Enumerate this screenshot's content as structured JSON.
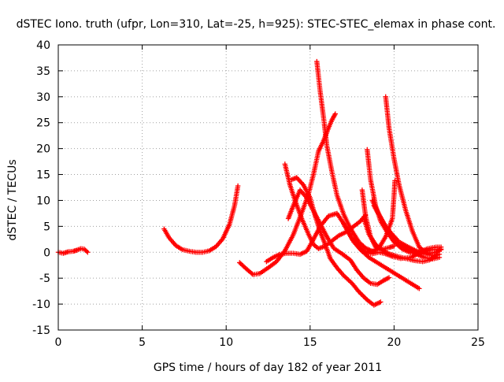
{
  "chart_data": {
    "type": "scatter",
    "title": "dSTEC Iono. truth (ufpr, Lon=310, Lat=-25, h=925): STEC-STEC_elemax in phase cont.",
    "xlabel": "GPS time / hours of day 182 of year 2011",
    "ylabel": "dSTEC  / TECUs",
    "xlim": [
      0,
      25
    ],
    "ylim": [
      -15,
      40
    ],
    "xticks": [
      0,
      5,
      10,
      15,
      20,
      25
    ],
    "yticks": [
      -15,
      -10,
      -5,
      0,
      5,
      10,
      15,
      20,
      25,
      30,
      35,
      40
    ],
    "grid": true,
    "marker": "+",
    "color": "#ff0000",
    "series": [
      {
        "points": [
          [
            0.0,
            0
          ],
          [
            0.3,
            -0.2
          ],
          [
            0.6,
            0.1
          ],
          [
            0.9,
            0.2
          ],
          [
            1.1,
            0.4
          ],
          [
            1.35,
            0.7
          ],
          [
            1.55,
            0.6
          ],
          [
            1.75,
            0
          ]
        ]
      },
      {
        "points": [
          [
            6.3,
            4.5
          ],
          [
            6.6,
            2.8
          ],
          [
            7.0,
            1.3
          ],
          [
            7.4,
            0.5
          ],
          [
            7.8,
            0.2
          ],
          [
            8.2,
            0.0
          ],
          [
            8.6,
            0.0
          ],
          [
            9.0,
            0.3
          ],
          [
            9.4,
            1.1
          ],
          [
            9.8,
            2.6
          ],
          [
            10.2,
            5.4
          ],
          [
            10.5,
            9.0
          ],
          [
            10.7,
            12.8
          ]
        ]
      },
      {
        "points": [
          [
            10.8,
            -2
          ],
          [
            11.2,
            -3.2
          ],
          [
            11.6,
            -4.3
          ],
          [
            12.0,
            -4.1
          ],
          [
            12.5,
            -3.0
          ],
          [
            13.0,
            -1.8
          ],
          [
            13.5,
            0.3
          ],
          [
            14.0,
            3.4
          ],
          [
            14.5,
            7.6
          ],
          [
            14.9,
            11.2
          ],
          [
            15.2,
            15.0
          ],
          [
            15.5,
            19.5
          ],
          [
            15.8,
            21.5
          ],
          [
            16.1,
            24.0
          ],
          [
            16.3,
            25.5
          ],
          [
            16.5,
            26.7
          ]
        ]
      },
      {
        "points": [
          [
            15.4,
            36.8
          ],
          [
            15.6,
            31.0
          ],
          [
            15.8,
            26.0
          ],
          [
            16.0,
            20.5
          ],
          [
            16.3,
            15.5
          ],
          [
            16.6,
            11.0
          ],
          [
            17.0,
            7.3
          ],
          [
            17.4,
            4.6
          ],
          [
            17.9,
            2.0
          ],
          [
            18.3,
            0.8
          ],
          [
            18.7,
            0.2
          ]
        ]
      },
      {
        "points": [
          [
            13.5,
            17.0
          ],
          [
            13.8,
            13.0
          ],
          [
            14.1,
            10.0
          ],
          [
            14.5,
            6.5
          ],
          [
            14.9,
            3.5
          ],
          [
            15.2,
            1.5
          ],
          [
            15.5,
            0.7
          ],
          [
            15.9,
            1.2
          ],
          [
            16.3,
            2.2
          ],
          [
            16.7,
            3.2
          ],
          [
            17.2,
            4.0
          ],
          [
            17.6,
            5.0
          ],
          [
            18.0,
            6.0
          ],
          [
            18.3,
            7.2
          ]
        ]
      },
      {
        "points": [
          [
            12.4,
            -1.8
          ],
          [
            12.8,
            -1.0
          ],
          [
            13.2,
            -0.4
          ],
          [
            13.6,
            -0.2
          ],
          [
            14.0,
            -0.2
          ],
          [
            14.4,
            -0.4
          ],
          [
            14.8,
            0.2
          ],
          [
            15.2,
            2.5
          ],
          [
            15.6,
            5.0
          ],
          [
            16.1,
            7.0
          ],
          [
            16.6,
            7.5
          ],
          [
            17.1,
            5.0
          ],
          [
            17.6,
            2.0
          ],
          [
            18.1,
            0.2
          ],
          [
            18.6,
            0.0
          ],
          [
            19.1,
            0.8
          ],
          [
            19.5,
            3.0
          ],
          [
            19.9,
            6.5
          ],
          [
            20.0,
            11.0
          ],
          [
            20.05,
            13.8
          ]
        ]
      },
      {
        "points": [
          [
            13.9,
            14.0
          ],
          [
            14.2,
            14.4
          ],
          [
            14.6,
            13.0
          ],
          [
            15.0,
            10.5
          ],
          [
            15.3,
            7.0
          ],
          [
            15.6,
            4.0
          ],
          [
            15.9,
            1.5
          ],
          [
            16.2,
            -1.2
          ],
          [
            16.6,
            -3.0
          ],
          [
            17.0,
            -4.5
          ],
          [
            17.5,
            -6.0
          ],
          [
            17.9,
            -7.6
          ],
          [
            18.4,
            -9.2
          ],
          [
            18.8,
            -10.2
          ],
          [
            19.2,
            -9.6
          ]
        ]
      },
      {
        "points": [
          [
            13.7,
            6.5
          ],
          [
            14.0,
            9.0
          ],
          [
            14.4,
            12.0
          ],
          [
            14.8,
            10.5
          ],
          [
            15.2,
            8.0
          ],
          [
            15.6,
            5.5
          ],
          [
            16.0,
            3.0
          ],
          [
            16.4,
            0.8
          ],
          [
            16.9,
            -0.3
          ],
          [
            17.4,
            -1.5
          ],
          [
            17.8,
            -3.5
          ],
          [
            18.2,
            -5.0
          ],
          [
            18.6,
            -6.0
          ],
          [
            19.0,
            -6.2
          ],
          [
            19.4,
            -5.4
          ],
          [
            19.7,
            -4.9
          ]
        ]
      },
      {
        "points": [
          [
            18.1,
            12.0
          ],
          [
            18.3,
            7.0
          ],
          [
            18.6,
            3.0
          ],
          [
            18.9,
            1.0
          ],
          [
            19.3,
            0.6
          ],
          [
            19.7,
            0.9
          ],
          [
            20.0,
            1.2
          ]
        ]
      },
      {
        "points": [
          [
            18.4,
            19.8
          ],
          [
            18.6,
            14.0
          ],
          [
            18.9,
            9.0
          ],
          [
            19.2,
            6.0
          ],
          [
            19.6,
            3.8
          ],
          [
            20.0,
            2.0
          ],
          [
            20.5,
            0.6
          ],
          [
            21.0,
            -0.1
          ],
          [
            21.5,
            0.0
          ],
          [
            22.0,
            0.7
          ],
          [
            22.5,
            1.0
          ],
          [
            22.8,
            1.0
          ]
        ]
      },
      {
        "points": [
          [
            19.5,
            30.0
          ],
          [
            19.7,
            24.0
          ],
          [
            20.0,
            18.0
          ],
          [
            20.3,
            13.0
          ],
          [
            20.7,
            8.0
          ],
          [
            21.1,
            4.0
          ],
          [
            21.5,
            1.0
          ],
          [
            22.0,
            -0.3
          ],
          [
            22.5,
            0.0
          ],
          [
            22.8,
            0.6
          ]
        ]
      },
      {
        "points": [
          [
            18.7,
            10.0
          ],
          [
            19.0,
            8.0
          ],
          [
            19.4,
            5.5
          ],
          [
            19.8,
            3.8
          ],
          [
            20.3,
            2.0
          ],
          [
            20.8,
            1.1
          ],
          [
            21.3,
            0.3
          ],
          [
            21.8,
            -0.3
          ],
          [
            22.3,
            -0.6
          ],
          [
            22.7,
            -0.4
          ]
        ]
      },
      {
        "points": [
          [
            18.8,
            9.0
          ],
          [
            19.1,
            7.2
          ],
          [
            19.5,
            5.0
          ],
          [
            19.9,
            3.0
          ],
          [
            20.3,
            1.5
          ],
          [
            20.8,
            0.8
          ],
          [
            21.3,
            -0.3
          ],
          [
            21.8,
            -1.0
          ],
          [
            22.3,
            -1.3
          ],
          [
            22.7,
            -1.0
          ]
        ]
      },
      {
        "points": [
          [
            18.2,
            6.5
          ],
          [
            18.5,
            3.5
          ],
          [
            18.9,
            1.5
          ],
          [
            19.3,
            0.4
          ],
          [
            19.7,
            -0.3
          ],
          [
            20.2,
            -0.8
          ],
          [
            20.7,
            -1.2
          ],
          [
            21.2,
            -1.6
          ],
          [
            21.7,
            -1.8
          ],
          [
            22.1,
            -1.5
          ],
          [
            22.4,
            -0.9
          ],
          [
            22.6,
            -0.4
          ]
        ]
      },
      {
        "points": [
          [
            17.0,
            5.5
          ],
          [
            17.5,
            2.5
          ],
          [
            18.0,
            0.5
          ],
          [
            18.5,
            -1.0
          ],
          [
            19.0,
            -2.0
          ],
          [
            19.5,
            -3.0
          ],
          [
            20.0,
            -4.0
          ],
          [
            20.5,
            -5.0
          ],
          [
            21.0,
            -6.0
          ],
          [
            21.5,
            -7.0
          ]
        ]
      },
      {
        "points": [
          [
            17.6,
            2.5
          ],
          [
            17.9,
            1.0
          ],
          [
            18.3,
            0.0
          ],
          [
            18.7,
            -0.3
          ],
          [
            19.1,
            0.0
          ],
          [
            19.5,
            -0.3
          ],
          [
            19.9,
            -0.8
          ],
          [
            20.4,
            -1.2
          ],
          [
            21.0,
            -1.0
          ],
          [
            21.6,
            0.0
          ],
          [
            22.2,
            0.5
          ],
          [
            22.8,
            0.5
          ]
        ]
      }
    ]
  }
}
